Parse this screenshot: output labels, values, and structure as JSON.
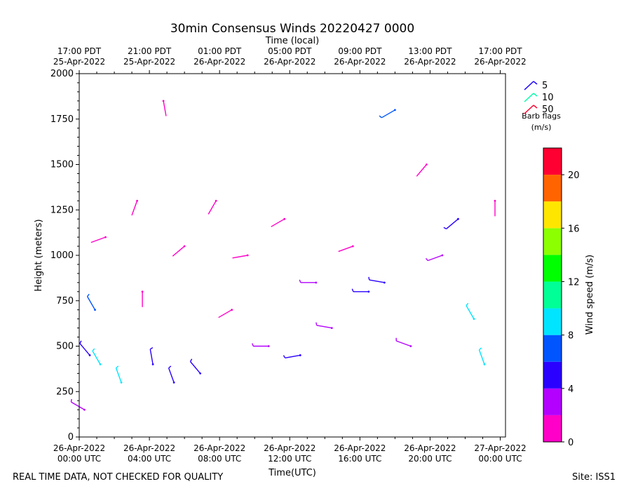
{
  "chart_data": {
    "type": "wind-barb-time-height",
    "title": "30min Consensus Winds 20220427 0000",
    "xlabel_bottom": "Time(UTC)",
    "xlabel_top": "Time (local)",
    "ylabel": "Height (meters)",
    "ylim": [
      0,
      2000
    ],
    "yticks": [
      0,
      250,
      500,
      750,
      1000,
      1250,
      1500,
      1750,
      2000
    ],
    "x_ticks_utc": [
      {
        "line1": "26-Apr-2022",
        "line2": "00:00 UTC"
      },
      {
        "line1": "26-Apr-2022",
        "line2": "04:00 UTC"
      },
      {
        "line1": "26-Apr-2022",
        "line2": "08:00 UTC"
      },
      {
        "line1": "26-Apr-2022",
        "line2": "12:00 UTC"
      },
      {
        "line1": "26-Apr-2022",
        "line2": "16:00 UTC"
      },
      {
        "line1": "26-Apr-2022",
        "line2": "20:00 UTC"
      },
      {
        "line1": "27-Apr-2022",
        "line2": "00:00 UTC"
      }
    ],
    "x_ticks_local": [
      {
        "line1": "17:00 PDT",
        "line2": "25-Apr-2022"
      },
      {
        "line1": "21:00 PDT",
        "line2": "25-Apr-2022"
      },
      {
        "line1": "01:00 PDT",
        "line2": "26-Apr-2022"
      },
      {
        "line1": "05:00 PDT",
        "line2": "26-Apr-2022"
      },
      {
        "line1": "09:00 PDT",
        "line2": "26-Apr-2022"
      },
      {
        "line1": "13:00 PDT",
        "line2": "26-Apr-2022"
      },
      {
        "line1": "17:00 PDT",
        "line2": "26-Apr-2022"
      }
    ],
    "x_range_hours_utc": [
      0,
      24.3
    ],
    "barb_legend": {
      "entries": [
        {
          "label": "5",
          "color": "#1a00ff"
        },
        {
          "label": "10",
          "color": "#00ffa8"
        },
        {
          "label": "50",
          "color": "#ff0030"
        }
      ],
      "title_line1": "Barb flags",
      "title_line2": "(m/s)"
    },
    "colorbar": {
      "label": "Wind speed (m/s)",
      "ticks": [
        0,
        4,
        8,
        12,
        16,
        20
      ],
      "bounds": [
        0,
        22
      ],
      "bins": [
        {
          "min": 0,
          "max": 2,
          "color": "#ff00c8"
        },
        {
          "min": 2,
          "max": 4,
          "color": "#b300ff"
        },
        {
          "min": 4,
          "max": 6,
          "color": "#2a00ff"
        },
        {
          "min": 6,
          "max": 8,
          "color": "#0055ff"
        },
        {
          "min": 8,
          "max": 10,
          "color": "#00e5ff"
        },
        {
          "min": 10,
          "max": 12,
          "color": "#00ff96"
        },
        {
          "min": 12,
          "max": 14,
          "color": "#00ff00"
        },
        {
          "min": 14,
          "max": 16,
          "color": "#8cff00"
        },
        {
          "min": 16,
          "max": 18,
          "color": "#ffe600"
        },
        {
          "min": 18,
          "max": 20,
          "color": "#ff6400"
        },
        {
          "min": 20,
          "max": 22,
          "color": "#ff0032"
        }
      ]
    },
    "barbs": [
      {
        "t": 0.3,
        "h": 150,
        "speed": 3.5,
        "dir": 300
      },
      {
        "t": 0.6,
        "h": 450,
        "speed": 4.5,
        "dir": 320
      },
      {
        "t": 0.9,
        "h": 700,
        "speed": 6.5,
        "dir": 330
      },
      {
        "t": 1.2,
        "h": 400,
        "speed": 8.5,
        "dir": 330
      },
      {
        "t": 1.5,
        "h": 1100,
        "speed": 1.5,
        "dir": 250
      },
      {
        "t": 2.4,
        "h": 300,
        "speed": 8.5,
        "dir": 340
      },
      {
        "t": 3.3,
        "h": 1300,
        "speed": 1.5,
        "dir": 200
      },
      {
        "t": 3.6,
        "h": 800,
        "speed": 1.5,
        "dir": 180
      },
      {
        "t": 4.2,
        "h": 400,
        "speed": 4.5,
        "dir": 350
      },
      {
        "t": 4.8,
        "h": 1850,
        "speed": 1.5,
        "dir": 170
      },
      {
        "t": 5.4,
        "h": 300,
        "speed": 5.5,
        "dir": 340
      },
      {
        "t": 6.0,
        "h": 1050,
        "speed": 1.5,
        "dir": 230
      },
      {
        "t": 6.9,
        "h": 350,
        "speed": 4.5,
        "dir": 320
      },
      {
        "t": 7.8,
        "h": 1300,
        "speed": 1.5,
        "dir": 210
      },
      {
        "t": 8.7,
        "h": 700,
        "speed": 1.5,
        "dir": 240
      },
      {
        "t": 9.6,
        "h": 1000,
        "speed": 1.5,
        "dir": 260
      },
      {
        "t": 10.8,
        "h": 500,
        "speed": 3.5,
        "dir": 270
      },
      {
        "t": 11.7,
        "h": 1200,
        "speed": 1.5,
        "dir": 240
      },
      {
        "t": 12.6,
        "h": 450,
        "speed": 5.5,
        "dir": 260
      },
      {
        "t": 13.5,
        "h": 850,
        "speed": 3.5,
        "dir": 270
      },
      {
        "t": 14.4,
        "h": 600,
        "speed": 3.5,
        "dir": 280
      },
      {
        "t": 15.6,
        "h": 1050,
        "speed": 1.5,
        "dir": 250
      },
      {
        "t": 16.5,
        "h": 800,
        "speed": 4.5,
        "dir": 270
      },
      {
        "t": 17.4,
        "h": 850,
        "speed": 5.5,
        "dir": 280
      },
      {
        "t": 18.0,
        "h": 1800,
        "speed": 6.5,
        "dir": 240
      },
      {
        "t": 18.9,
        "h": 500,
        "speed": 3.5,
        "dir": 290
      },
      {
        "t": 19.8,
        "h": 1500,
        "speed": 1.5,
        "dir": 220
      },
      {
        "t": 20.7,
        "h": 1000,
        "speed": 3.5,
        "dir": 250
      },
      {
        "t": 21.6,
        "h": 1200,
        "speed": 4.5,
        "dir": 230
      },
      {
        "t": 22.5,
        "h": 650,
        "speed": 8.5,
        "dir": 330
      },
      {
        "t": 23.1,
        "h": 400,
        "speed": 9,
        "dir": 340
      },
      {
        "t": 23.7,
        "h": 1300,
        "speed": 1.5,
        "dir": 180
      }
    ]
  },
  "footer": {
    "left_note": "REAL TIME DATA, NOT CHECKED FOR QUALITY",
    "site": "Site: ISS1"
  }
}
